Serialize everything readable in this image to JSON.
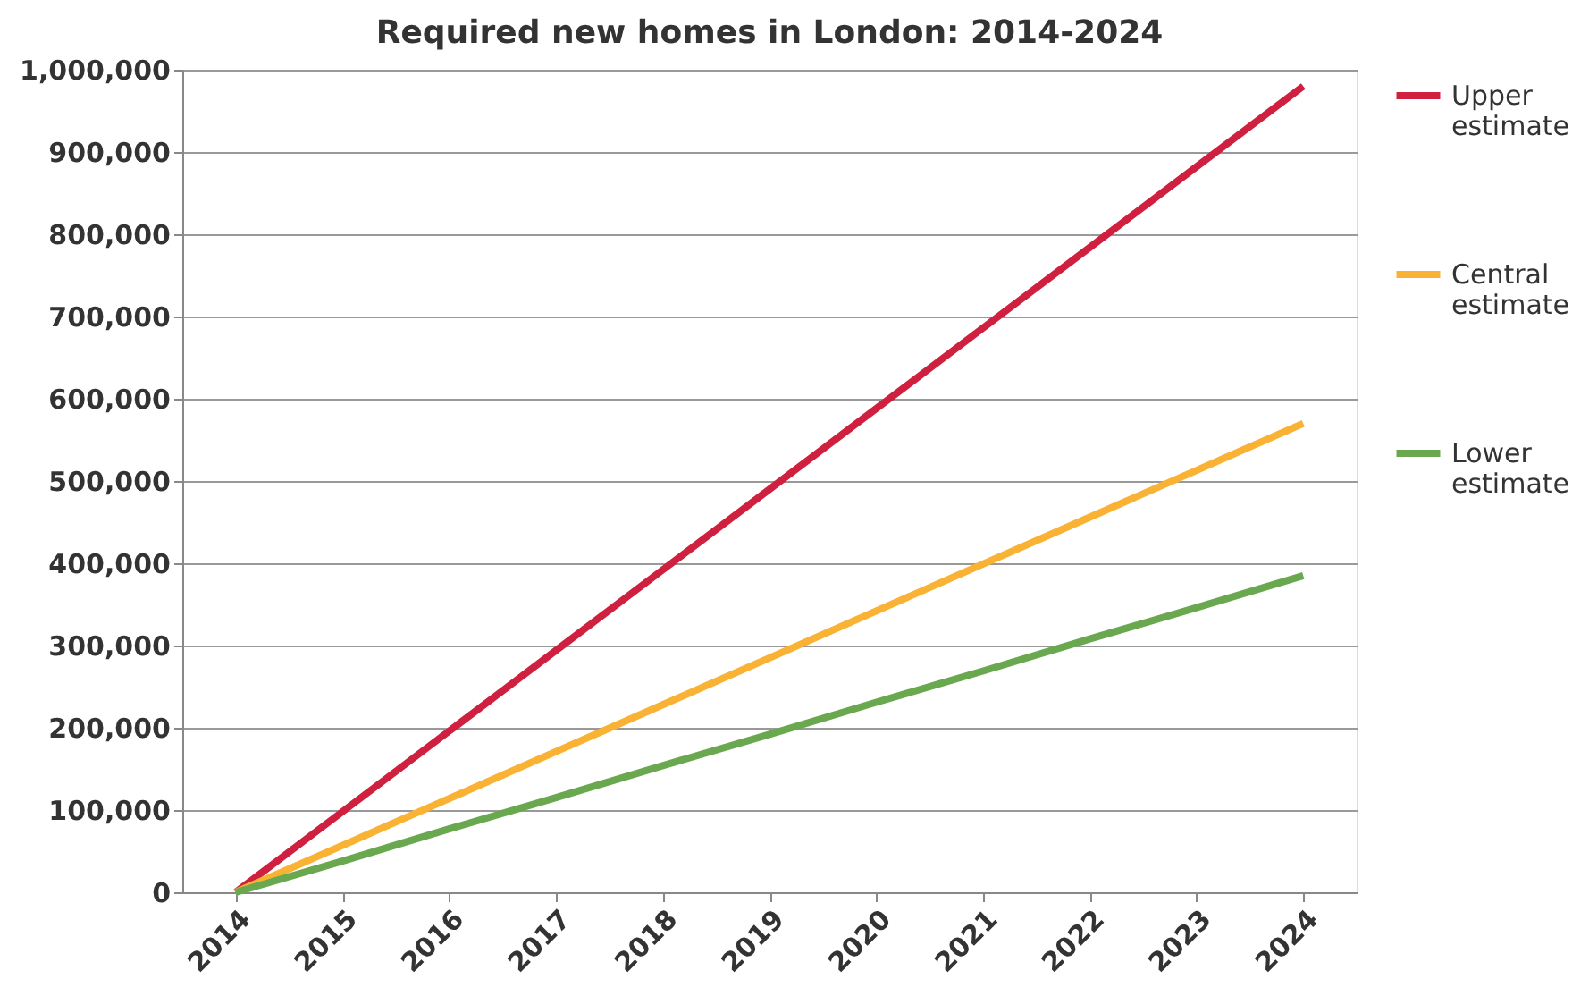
{
  "chart_data": {
    "type": "line",
    "title": "Required new homes in London: 2014-2024",
    "categories": [
      "2014",
      "2015",
      "2016",
      "2017",
      "2018",
      "2019",
      "2020",
      "2021",
      "2022",
      "2023",
      "2024"
    ],
    "series": [
      {
        "name": "Upper estimate",
        "color": "#d0203f",
        "values": [
          0,
          98000,
          196000,
          294000,
          392000,
          490000,
          588000,
          686000,
          784000,
          882000,
          980000
        ]
      },
      {
        "name": "Central estimate",
        "color": "#f9b233",
        "values": [
          0,
          57000,
          114000,
          171000,
          228000,
          285000,
          342000,
          399000,
          456000,
          513000,
          570000
        ]
      },
      {
        "name": "Lower estimate",
        "color": "#6aa84f",
        "values": [
          0,
          38000,
          77000,
          115000,
          154000,
          192000,
          231000,
          269000,
          308000,
          346000,
          385000
        ]
      }
    ],
    "ylim": [
      0,
      1000000
    ],
    "yticks": [
      0,
      {
        "value": 100000,
        "label": "100,000"
      },
      {
        "value": 200000,
        "label": "200,000"
      },
      {
        "value": 300000,
        "label": "300,000"
      },
      {
        "value": 400000,
        "label": "400,000"
      },
      {
        "value": 500000,
        "label": "500,000"
      },
      {
        "value": 600000,
        "label": "600,000"
      },
      {
        "value": 700000,
        "label": "700,000"
      },
      {
        "value": 800000,
        "label": "800,000"
      },
      {
        "value": 900000,
        "label": "900,000"
      },
      {
        "value": 1000000,
        "label": "1,000,000"
      }
    ],
    "grid": "y",
    "legend": "right",
    "marker": "none",
    "line_style": "solid"
  }
}
